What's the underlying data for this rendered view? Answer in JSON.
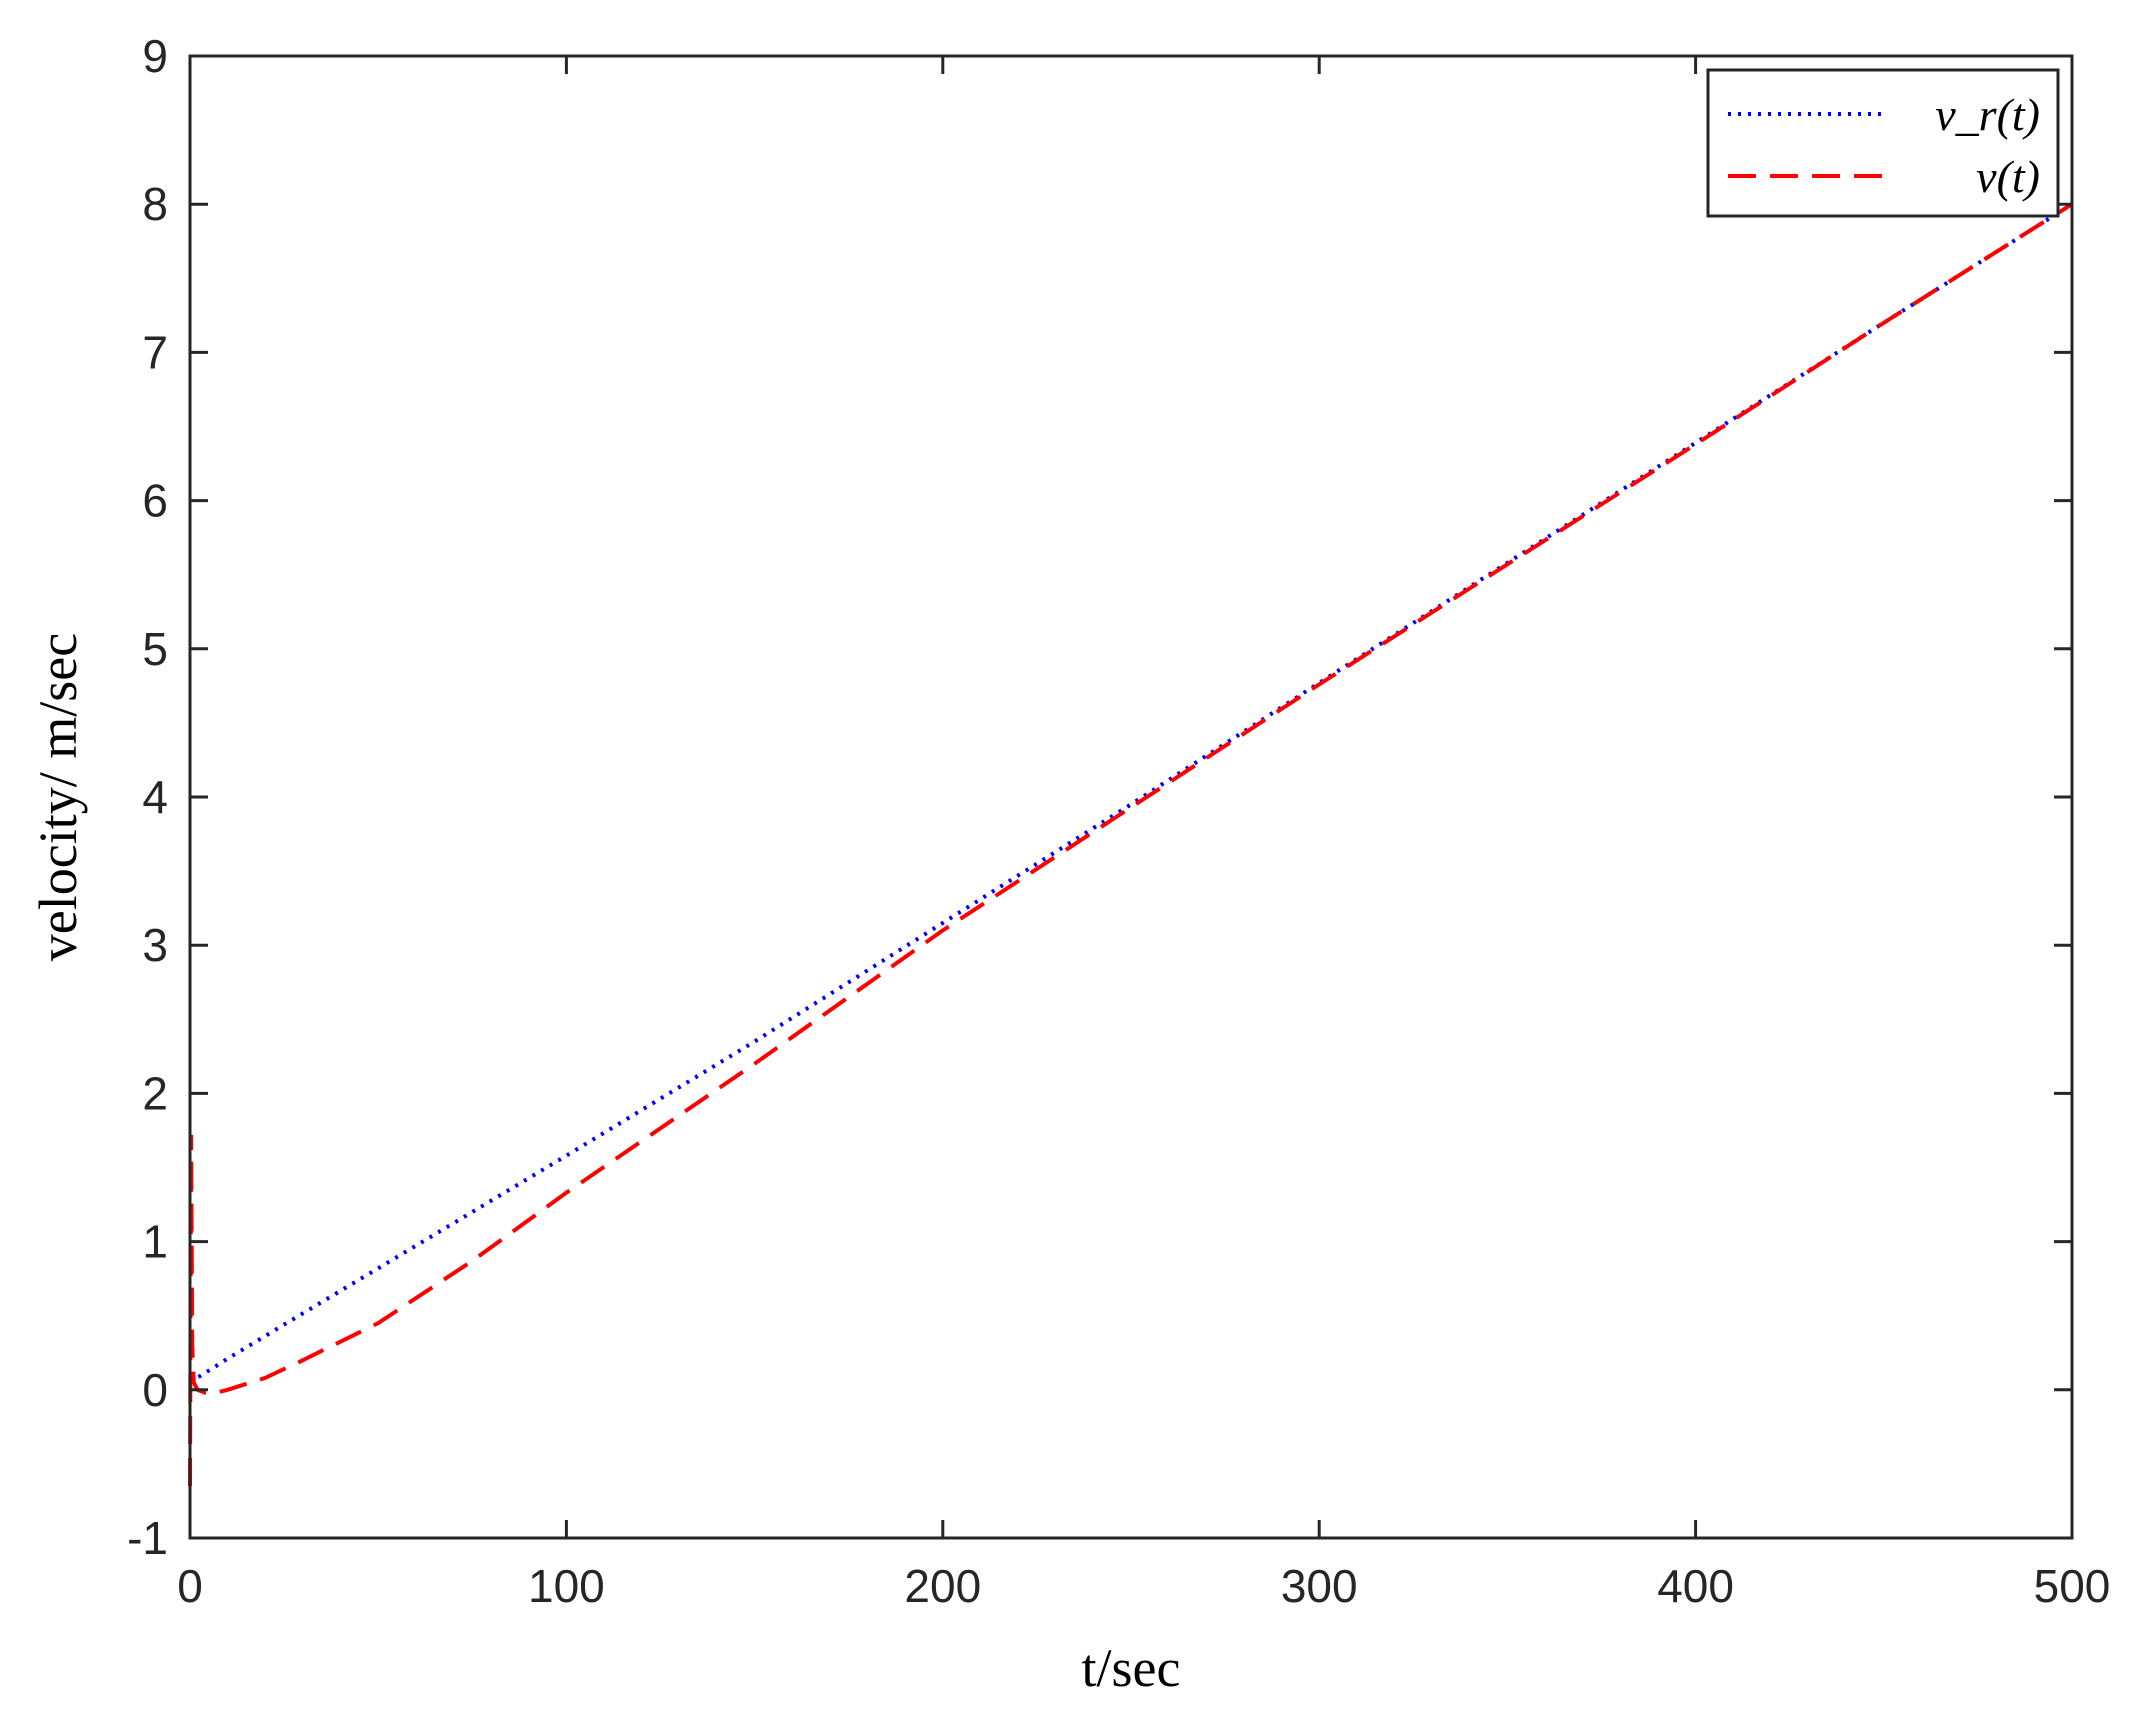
{
  "chart_data": {
    "type": "line",
    "title": "",
    "xlabel": "t/sec",
    "ylabel": "velocity/ m/sec",
    "xlim": [
      0,
      500
    ],
    "ylim": [
      -1,
      9
    ],
    "xticks": [
      0,
      100,
      200,
      300,
      400,
      500
    ],
    "yticks": [
      -1,
      0,
      1,
      2,
      3,
      4,
      5,
      6,
      7,
      8,
      9
    ],
    "grid": false,
    "legend_position": "top-right",
    "series": [
      {
        "name": "v_r(t)",
        "color": "#0000ff",
        "style": "dotted",
        "x": [
          0,
          10,
          25,
          50,
          75,
          100,
          150,
          200,
          250,
          300,
          350,
          400,
          450,
          500
        ],
        "y": [
          0.05,
          0.21,
          0.44,
          0.82,
          1.2,
          1.58,
          2.35,
          3.15,
          3.95,
          4.77,
          5.58,
          6.39,
          7.2,
          8.0
        ]
      },
      {
        "name": "v(t)",
        "color": "#ff0000",
        "style": "dashed",
        "x": [
          0,
          0.3,
          0.6,
          1,
          2,
          4,
          7,
          10,
          20,
          30,
          50,
          75,
          100,
          150,
          200,
          250,
          300,
          350,
          400,
          450,
          500
        ],
        "y": [
          -0.65,
          1.72,
          0.3,
          0.05,
          0.0,
          -0.02,
          -0.02,
          0.0,
          0.08,
          0.2,
          0.45,
          0.87,
          1.33,
          2.2,
          3.1,
          3.93,
          4.76,
          5.57,
          6.38,
          7.2,
          8.0
        ]
      }
    ]
  }
}
